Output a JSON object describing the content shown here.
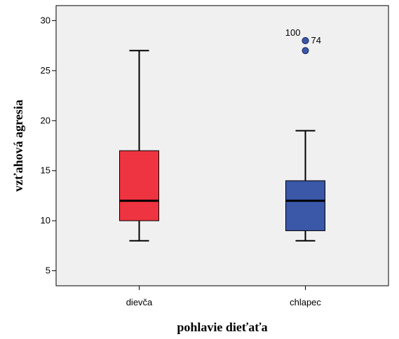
{
  "chart_data": {
    "type": "box",
    "xlabel": "pohlavie dieťaťa",
    "ylabel": "vzťahová agresia",
    "ylim": [
      3.5,
      31.5
    ],
    "yticks": [
      5,
      10,
      15,
      20,
      25,
      30
    ],
    "grid": false,
    "categories": [
      "dievča",
      "chlapec"
    ],
    "boxes": [
      {
        "name": "dievča",
        "whisker_low": 8,
        "q1": 10,
        "median": 12,
        "q3": 17,
        "whisker_high": 27,
        "color": "#ee3440",
        "outliers": []
      },
      {
        "name": "chlapec",
        "whisker_low": 8,
        "q1": 9,
        "median": 12,
        "q3": 14,
        "whisker_high": 19,
        "color": "#3a57a8",
        "outliers": [
          {
            "value": 28,
            "label": "100"
          },
          {
            "value": 28,
            "label": "74"
          },
          {
            "value": 27,
            "label": ""
          }
        ]
      }
    ]
  },
  "colors": {
    "plot_background": "#f0f0f0",
    "axis": "#000000"
  }
}
